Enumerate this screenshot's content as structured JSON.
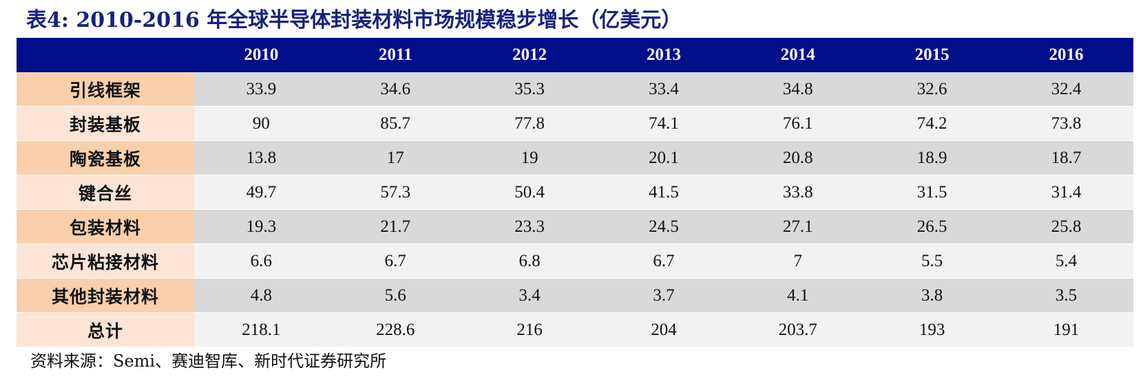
{
  "title": "表4:  2010-2016 年全球半导体封装材料市场规模稳步增长（亿美元）",
  "table": {
    "corner": "",
    "years": [
      "2010",
      "2011",
      "2012",
      "2013",
      "2014",
      "2015",
      "2016"
    ],
    "rows": [
      {
        "label": "引线框架",
        "values": [
          "33.9",
          "34.6",
          "35.3",
          "33.4",
          "34.8",
          "32.6",
          "32.4"
        ]
      },
      {
        "label": "封装基板",
        "values": [
          "90",
          "85.7",
          "77.8",
          "74.1",
          "76.1",
          "74.2",
          "73.8"
        ]
      },
      {
        "label": "陶瓷基板",
        "values": [
          "13.8",
          "17",
          "19",
          "20.1",
          "20.8",
          "18.9",
          "18.7"
        ]
      },
      {
        "label": "键合丝",
        "values": [
          "49.7",
          "57.3",
          "50.4",
          "41.5",
          "33.8",
          "31.5",
          "31.4"
        ]
      },
      {
        "label": "包装材料",
        "values": [
          "19.3",
          "21.7",
          "23.3",
          "24.5",
          "27.1",
          "26.5",
          "25.8"
        ]
      },
      {
        "label": "芯片粘接材料",
        "values": [
          "6.6",
          "6.7",
          "6.8",
          "6.7",
          "7",
          "5.5",
          "5.4"
        ]
      },
      {
        "label": "其他封装材料",
        "values": [
          "4.8",
          "5.6",
          "3.4",
          "3.7",
          "4.1",
          "3.8",
          "3.5"
        ]
      },
      {
        "label": "总计",
        "values": [
          "218.1",
          "228.6",
          "216",
          "204",
          "203.7",
          "193",
          "191"
        ]
      }
    ]
  },
  "source": "资料来源：Semi、赛迪智库、新时代证券研究所",
  "colors": {
    "title": "#16217e",
    "header_bg": "#000e8a",
    "label_dark": "#fad0ac",
    "label_light": "#fce5d6",
    "cell_dark": "#d9d9d9",
    "cell_light": "#f2f2f2"
  }
}
